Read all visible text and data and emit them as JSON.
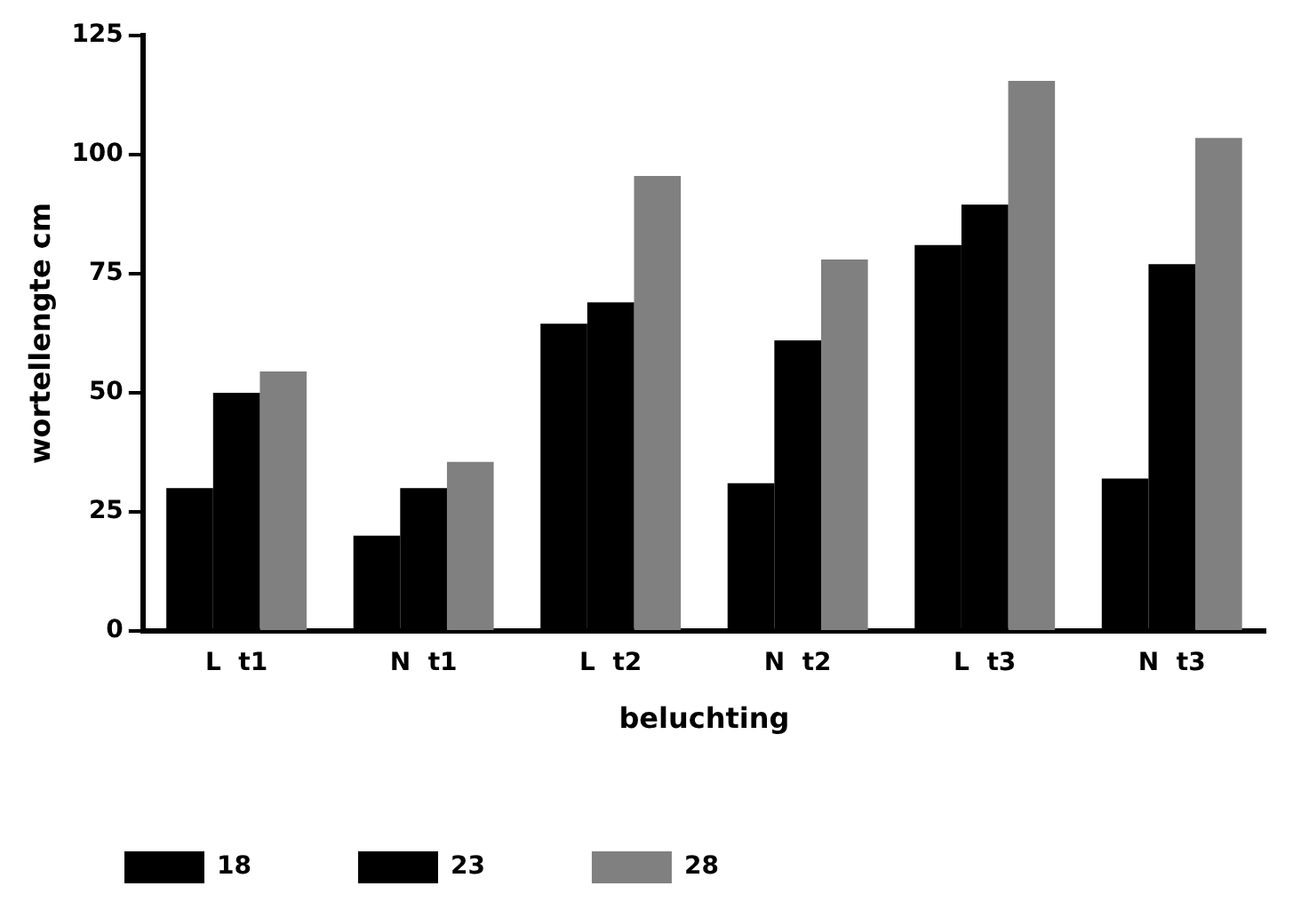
{
  "chart_data": {
    "type": "bar",
    "xlabel": "beluchting",
    "ylabel": "wortellengte cm",
    "categories": [
      "L  t1",
      "N  t1",
      "L  t2",
      "N  t2",
      "L  t3",
      "N  t3"
    ],
    "series": [
      {
        "name": "18",
        "color": "#000000",
        "values": [
          30,
          20,
          64.5,
          31,
          81,
          32
        ]
      },
      {
        "name": "23",
        "color": "#000000",
        "values": [
          50,
          30,
          69,
          61,
          89.5,
          77
        ]
      },
      {
        "name": "28",
        "color": "#808080",
        "values": [
          54.5,
          35.5,
          95.5,
          78,
          115.5,
          103.5
        ]
      }
    ],
    "ylim": [
      0,
      125
    ],
    "yticks": [
      0,
      25,
      50,
      75,
      100,
      125
    ],
    "grid": false,
    "legend": "bottom"
  }
}
